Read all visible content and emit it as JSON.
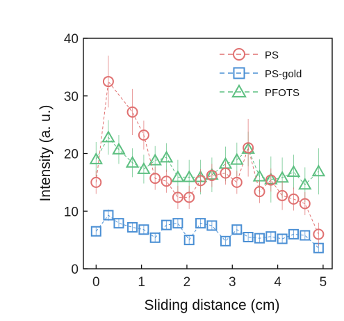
{
  "chart_data": {
    "type": "scatter",
    "xlabel": "Sliding distance (cm)",
    "ylabel": "Intensity (a. u.)",
    "xlim": [
      -0.28,
      5.2
    ],
    "ylim": [
      0,
      40
    ],
    "xticks": [
      "0",
      "1",
      "2",
      "3",
      "4",
      "5"
    ],
    "yticks": [
      "0",
      "10",
      "20",
      "30",
      "40"
    ],
    "grid": false,
    "legend_position": "top-right",
    "series": [
      {
        "name": "PS",
        "marker": "circle",
        "color": "#e07070",
        "line": "dashed",
        "x": [
          0,
          0.27,
          0.8,
          1.05,
          1.3,
          1.55,
          1.8,
          2.05,
          2.3,
          2.55,
          2.85,
          3.1,
          3.35,
          3.6,
          3.85,
          4.1,
          4.35,
          4.6,
          4.9
        ],
        "y": [
          15,
          32.5,
          27.2,
          23.2,
          15.7,
          15.2,
          12.4,
          12.4,
          15.3,
          16.2,
          16.6,
          15,
          21,
          13.4,
          15.4,
          12.7,
          12.1,
          11.3,
          6
        ],
        "err": [
          2,
          4.5,
          4,
          2.5,
          2,
          2,
          2,
          2,
          2,
          2,
          2,
          2,
          5,
          2,
          2,
          2.5,
          2,
          2,
          2
        ]
      },
      {
        "name": "PS-gold",
        "marker": "square",
        "color": "#4a8fd4",
        "line": "dashed",
        "x": [
          0,
          0.27,
          0.5,
          0.8,
          1.05,
          1.3,
          1.55,
          1.8,
          2.05,
          2.3,
          2.55,
          2.85,
          3.1,
          3.35,
          3.6,
          3.85,
          4.1,
          4.35,
          4.6,
          4.9
        ],
        "y": [
          6.5,
          9.3,
          7.9,
          7.2,
          6.8,
          5.4,
          7.6,
          7.9,
          5,
          7.9,
          7.5,
          4.8,
          6.8,
          5.5,
          5.3,
          5.6,
          5.2,
          6,
          5.8,
          3.6
        ],
        "err": [
          0.8,
          1,
          0.8,
          0.8,
          0.8,
          0.8,
          0.8,
          0.8,
          0.8,
          0.8,
          0.8,
          0.8,
          0.8,
          0.8,
          0.8,
          0.8,
          0.8,
          0.8,
          0.8,
          0.8
        ]
      },
      {
        "name": "PFOTS",
        "marker": "triangle",
        "color": "#5cbf80",
        "line": "dashed",
        "x": [
          0,
          0.27,
          0.5,
          0.8,
          1.05,
          1.3,
          1.55,
          1.8,
          2.05,
          2.3,
          2.55,
          2.85,
          3.1,
          3.35,
          3.6,
          3.85,
          4.1,
          4.35,
          4.6,
          4.9
        ],
        "y": [
          19,
          22.8,
          20.7,
          18.4,
          17.3,
          18.8,
          19.3,
          15.9,
          15.9,
          15.9,
          16.3,
          18.2,
          18.9,
          20.8,
          16,
          15.5,
          15.8,
          16.8,
          14.6,
          16.9
        ],
        "err": [
          3,
          3,
          2.5,
          2.5,
          2.5,
          2.5,
          2.5,
          3,
          3,
          3,
          3,
          3,
          3,
          3,
          3,
          4,
          3.5,
          3,
          3,
          4
        ]
      }
    ]
  }
}
